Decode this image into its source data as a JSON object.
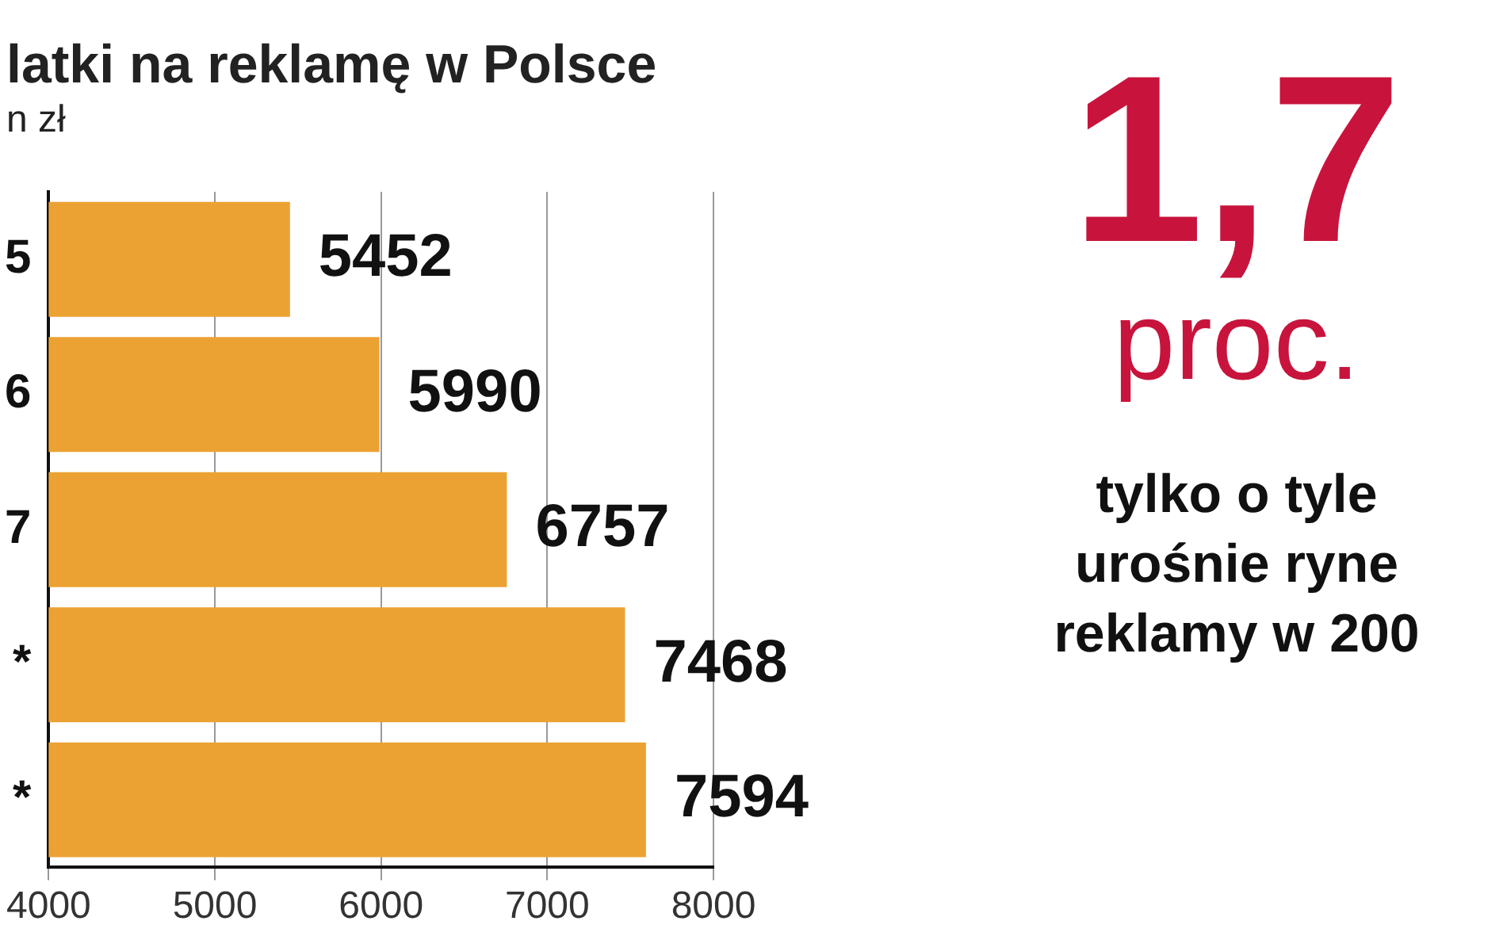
{
  "chart_data": {
    "type": "bar",
    "orientation": "horizontal",
    "title": "latki na reklamę w Polsce",
    "subtitle": "n zł",
    "categories": [
      "5",
      "6",
      "7",
      "*",
      "*"
    ],
    "values": [
      5452,
      5990,
      6757,
      7468,
      7594
    ],
    "color": "#eca232",
    "xlim": [
      4000,
      8000
    ],
    "xticks": [
      4000,
      5000,
      6000,
      7000,
      8000
    ],
    "grid": "x",
    "data_labels": true,
    "annotations": [
      "1,7",
      "proc.",
      "tylko o tyle\nurośnie ryne\nreklamy w 200"
    ]
  }
}
